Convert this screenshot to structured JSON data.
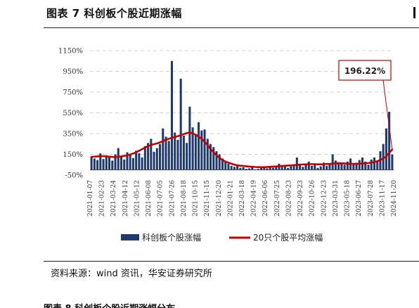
{
  "figure": {
    "title": "图表 7 科创板个股近期涨幅",
    "source": "资料来源：wind 资讯，华安证券研究所",
    "next_title": "图表 8 科创板个股近期涨幅分布"
  },
  "colors": {
    "bar": "#1f3a6e",
    "line": "#c00000",
    "grid": "#d0d0d0",
    "callout_border": "#c00000"
  },
  "chart_data": {
    "type": "bar",
    "title": "",
    "xlabel": "",
    "ylabel": "",
    "ylim": [
      -50,
      1150
    ],
    "y_ticks": [
      "1150%",
      "950%",
      "750%",
      "550%",
      "350%",
      "150%",
      "-50%"
    ],
    "y_tick_values": [
      1150,
      950,
      750,
      550,
      350,
      150,
      -50
    ],
    "x_tick_labels": [
      "2021-01-07",
      "2021-02-23",
      "2021-03-24",
      "2021-04-12",
      "2021-05-12",
      "2021-06-08",
      "2021-07-05",
      "2021-07-26",
      "2021-08-18",
      "2021-10-15",
      "2021-11-15",
      "2021-12-20",
      "2022-01-21",
      "2022-03-18",
      "2022-04-19",
      "2022-06-06",
      "2022-07-25",
      "2022-08-23",
      "2022-09-23",
      "2022-10-26",
      "2022-12-23",
      "2023-03-31",
      "2023-05-18",
      "2023-06-27",
      "2023-07-28",
      "2023-11-17",
      "2024-11-20"
    ],
    "grid": true,
    "legend_position": "bottom",
    "series": [
      {
        "name": "科创板个股涨幅",
        "type": "bar",
        "values": [
          130,
          110,
          95,
          160,
          105,
          140,
          120,
          90,
          150,
          210,
          125,
          100,
          170,
          145,
          115,
          185,
          160,
          120,
          230,
          260,
          300,
          175,
          210,
          250,
          400,
          320,
          280,
          1050,
          360,
          290,
          880,
          330,
          260,
          610,
          410,
          340,
          460,
          380,
          390,
          300,
          250,
          220,
          180,
          150,
          110,
          80,
          60,
          40,
          30,
          45,
          20,
          25,
          10,
          15,
          30,
          5,
          10,
          20,
          35,
          15,
          25,
          20,
          40,
          60,
          30,
          45,
          20,
          35,
          50,
          120,
          60,
          30,
          45,
          80,
          40,
          60,
          20,
          35,
          70,
          40,
          60,
          150,
          90,
          75,
          60,
          50,
          80,
          110,
          60,
          70,
          95,
          120,
          80,
          50,
          100,
          120,
          90,
          180,
          250,
          400,
          560,
          150
        ]
      },
      {
        "name": "20只个股平均涨幅",
        "type": "line",
        "values": [
          125,
          128,
          130,
          132,
          133,
          130,
          128,
          125,
          124,
          126,
          130,
          135,
          140,
          148,
          158,
          170,
          185,
          200,
          215,
          230,
          240,
          248,
          255,
          265,
          278,
          290,
          300,
          310,
          318,
          325,
          335,
          345,
          355,
          360,
          350,
          340,
          320,
          300,
          270,
          240,
          200,
          170,
          140,
          115,
          95,
          80,
          70,
          60,
          50,
          45,
          40,
          38,
          35,
          32,
          30,
          28,
          27,
          26,
          26,
          28,
          30,
          32,
          34,
          36,
          38,
          40,
          42,
          44,
          46,
          48,
          50,
          52,
          54,
          56,
          56,
          55,
          54,
          54,
          55,
          57,
          58,
          60,
          62,
          63,
          64,
          62,
          60,
          59,
          58,
          58,
          60,
          62,
          64,
          66,
          70,
          76,
          84,
          95,
          110,
          130,
          165,
          196
        ]
      }
    ],
    "annotations": [
      {
        "text": "196.22%",
        "target_series": 1,
        "target_index": 101
      }
    ]
  }
}
